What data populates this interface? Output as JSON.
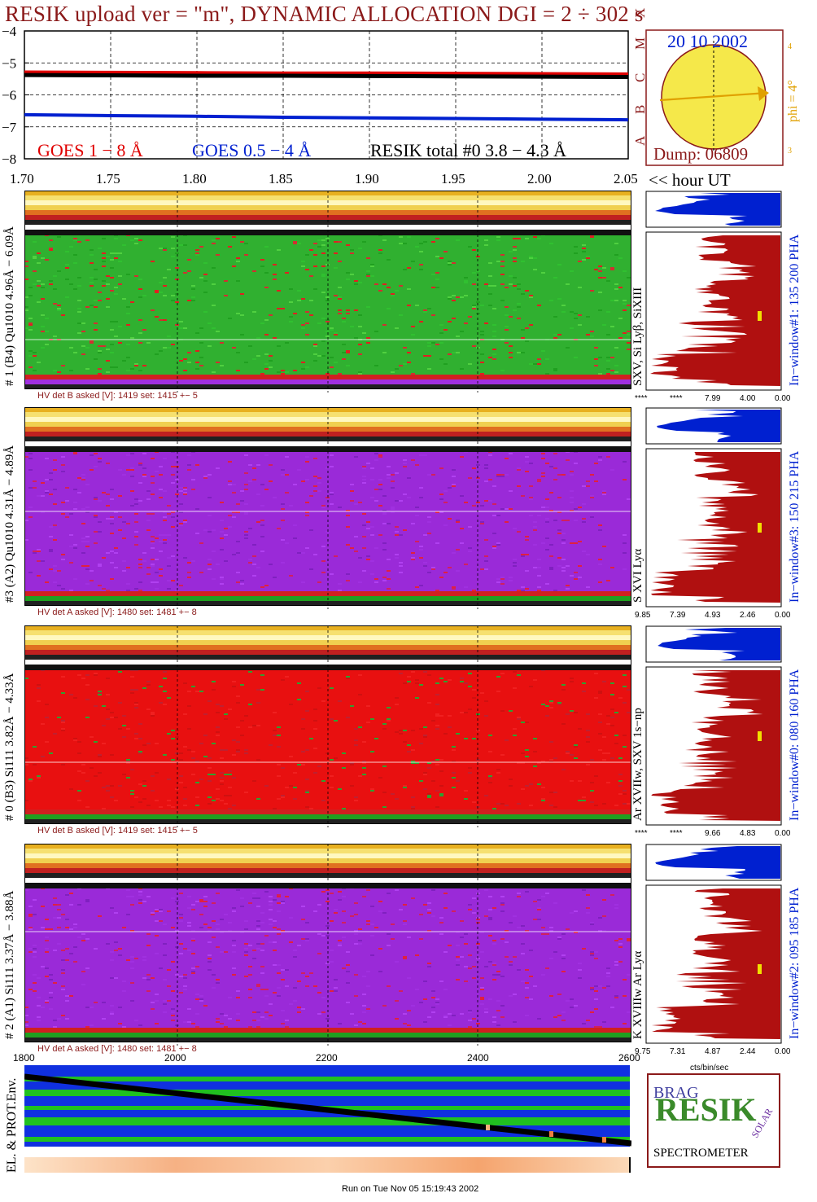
{
  "header": {
    "title": "RESIK upload ver = \"m\", DYNAMIC ALLOCATION  DGI =   2 ÷ 302 s",
    "date": "20 10 2002",
    "dump": "Dump: 06809",
    "phi": "phi =  4°",
    "phi_tick_top": "4",
    "phi_tick_bottom": "3",
    "footer": "Run on Tue Nov 05 15:19:43 2002"
  },
  "lightcurve": {
    "y_ticks": [
      "−4",
      "−5",
      "−6",
      "−7",
      "−8"
    ],
    "class_letters": [
      "X",
      "M",
      "C",
      "B",
      "A"
    ],
    "x_ticks": [
      "1.70",
      "1.75",
      "1.80",
      "1.85",
      "1.90",
      "1.95",
      "2.00",
      "2.05"
    ],
    "x_unit": "<< hour UT",
    "legend_goes_long": "GOES 1 − 8 Å",
    "legend_goes_short": "GOES 0.5 − 4 Å",
    "legend_resik": "RESIK total #0  3.8 − 4.3 Å",
    "colors": {
      "goes_long": "#e00000",
      "goes_short": "#0020d0",
      "resik": "#000000"
    }
  },
  "chart_data": {
    "type": "line",
    "title": "RESIK upload ver = \"m\", DYNAMIC ALLOCATION  DGI =   2 ÷ 302 s",
    "xlabel": "<< hour UT",
    "ylabel": "",
    "xlim": [
      1.7,
      2.05
    ],
    "ylim": [
      -8,
      -4
    ],
    "x": [
      1.7,
      1.75,
      1.8,
      1.85,
      1.9,
      1.95,
      2.0,
      2.05
    ],
    "series": [
      {
        "name": "GOES 1 − 8 Å",
        "values": [
          -5.3,
          -5.31,
          -5.32,
          -5.33,
          -5.33,
          -5.34,
          -5.35,
          -5.36
        ]
      },
      {
        "name": "GOES 0.5 − 4 Å",
        "values": [
          -6.62,
          -6.65,
          -6.67,
          -6.7,
          -6.72,
          -6.74,
          -6.76,
          -6.78
        ]
      },
      {
        "name": "RESIK total #0  3.8 − 4.3 Å",
        "values": [
          -5.38,
          -5.39,
          -5.4,
          -5.4,
          -5.41,
          -5.42,
          -5.43,
          -5.44
        ]
      }
    ]
  },
  "channels": [
    {
      "id": "ch1",
      "side_label": "# 1 (B4) Qu1010 4.96Å − 6.09Å",
      "lines_label": "SXV, Si Lyβ, SiXIII",
      "window_label": "In−window#1:  135 200 PHA",
      "hv": "HV det B asked [V]:  1419 set:  1415  +−    5",
      "pha_ticks": [
        "****",
        "****",
        "7.99",
        "4.00",
        "0.00"
      ],
      "theme": "green"
    },
    {
      "id": "ch3",
      "side_label": "#3 (A2) Qu1010  4.31Å − 4.89Å",
      "lines_label": "S XVI Lyα",
      "window_label": "In−window#3:  150 215 PHA",
      "hv": "HV det A asked [V]:  1480 set:  1481  +−    8",
      "pha_ticks": [
        "9.85",
        "7.39",
        "4.93",
        "2.46",
        "0.00"
      ],
      "theme": "purple"
    },
    {
      "id": "ch0",
      "side_label": "# 0 (B3) Si111  3.82Å − 4.33Å",
      "lines_label": "Ar XVIIw,  SXV 1s−np",
      "window_label": "In−window#0:  080 160 PHA",
      "hv": "HV det B asked [V]:  1419 set:  1415  +−    5",
      "pha_ticks": [
        "****",
        "****",
        "9.66",
        "4.83",
        "0.00"
      ],
      "theme": "red"
    },
    {
      "id": "ch2",
      "side_label": "# 2 (A1) Si111  3.37Å − 3.88Å",
      "lines_label": "K XVIIIw  Ar Lyα",
      "window_label": "In−window#2:  095 185 PHA",
      "hv": "HV det A asked [V]:  1480 set:  1481  +−    8",
      "pha_ticks": [
        "9.75",
        "7.31",
        "4.87",
        "2.44",
        "0.00"
      ],
      "theme": "purple"
    }
  ],
  "pha_unit": "cts/bin/sec",
  "env": {
    "label": "EL. & PROT.Env.",
    "x_ticks": [
      "1800",
      "2000",
      "2200",
      "2400",
      "2600"
    ]
  },
  "logo": {
    "letters": "RESIK",
    "corner": "BRAG",
    "side": "SOLAR",
    "caption": "SPECTROMETER"
  }
}
